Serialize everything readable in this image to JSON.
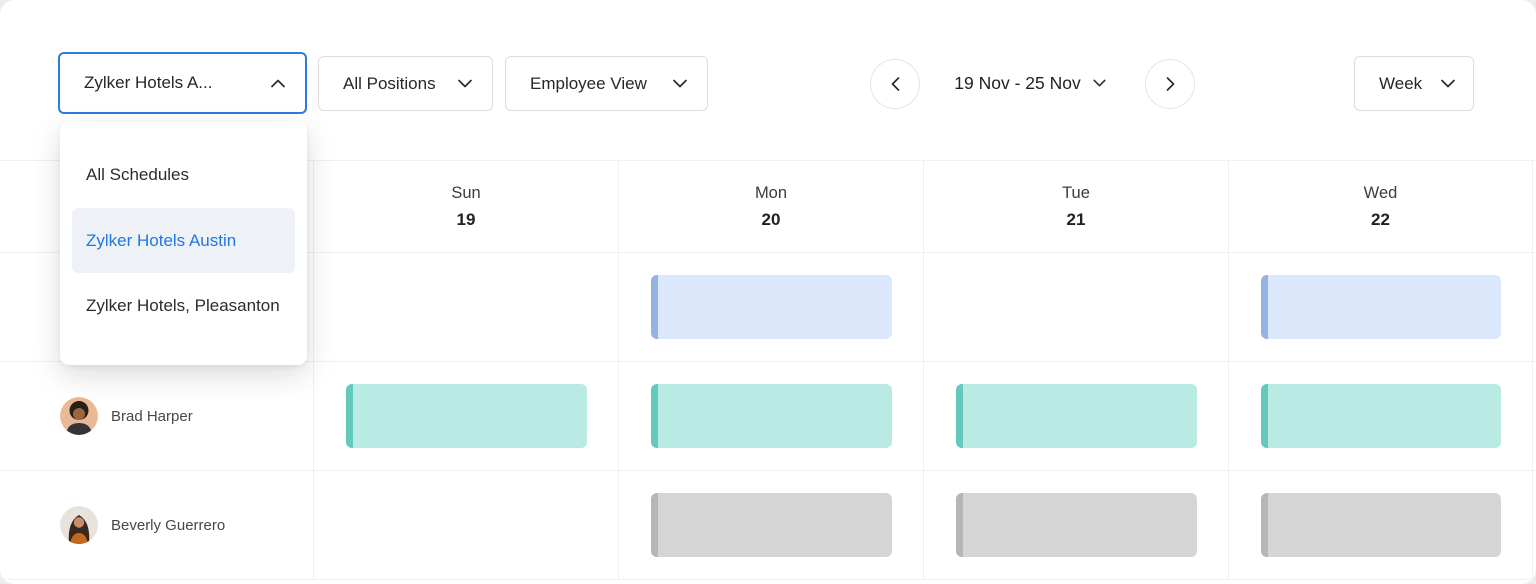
{
  "toolbar": {
    "schedule_filter": {
      "label": "Zylker Hotels A...",
      "state": "open"
    },
    "positions_filter": {
      "label": "All Positions"
    },
    "view_selector": {
      "label": "Employee View"
    },
    "date_range": {
      "label": "19 Nov - 25 Nov"
    },
    "period_selector": {
      "label": "Week"
    }
  },
  "schedule_menu": {
    "items": [
      {
        "label": "All Schedules",
        "selected": false
      },
      {
        "label": "Zylker Hotels Austin",
        "selected": true
      },
      {
        "label": "Zylker Hotels, Pleasanton",
        "selected": false
      }
    ]
  },
  "calendar": {
    "days": [
      {
        "name": "Sun",
        "date": "19"
      },
      {
        "name": "Mon",
        "date": "20"
      },
      {
        "name": "Tue",
        "date": "21"
      },
      {
        "name": "Wed",
        "date": "22"
      }
    ],
    "rows": [
      {
        "employee": "",
        "avatar": "",
        "shifts": [
          null,
          "blue",
          null,
          "blue"
        ]
      },
      {
        "employee": "Brad Harper",
        "avatar": "brad",
        "shifts": [
          "teal",
          "teal",
          "teal",
          "teal"
        ]
      },
      {
        "employee": "Beverly Guerrero",
        "avatar": "beverly",
        "shifts": [
          null,
          "gray",
          "gray",
          "gray"
        ]
      }
    ]
  },
  "shift_colors": {
    "blue": {
      "fill": "#dbe8fb",
      "stripe": "#94b3e2"
    },
    "teal": {
      "fill": "#b9eae4",
      "stripe": "#63c9bc"
    },
    "gray": {
      "fill": "#d5d5d5",
      "stripe": "#b6b6b6"
    }
  },
  "ui_colors": {
    "accent_border": "#2d7be0",
    "selected_text": "#2176e5",
    "selected_bg": "#eef2f7"
  }
}
